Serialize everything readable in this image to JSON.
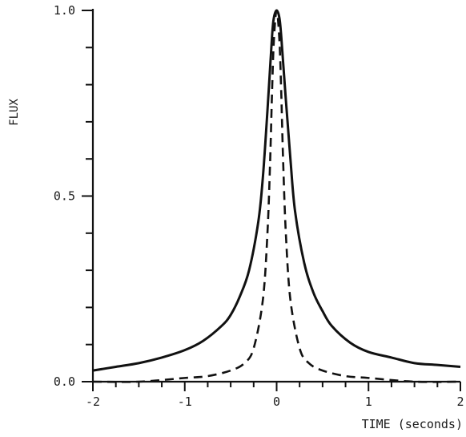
{
  "chart_data": {
    "type": "line",
    "title": "",
    "xlabel": "TIME (seconds)",
    "ylabel": "FLUX",
    "xlim": [
      -2,
      2
    ],
    "ylim": [
      0,
      1
    ],
    "xticks": [
      -2,
      -1,
      0,
      1,
      2
    ],
    "xtick_labels": [
      "-2",
      "-1",
      "0",
      "1",
      "2"
    ],
    "yticks": [
      0,
      0.5,
      1
    ],
    "ytick_labels": [
      "0.0",
      "0.5",
      "1.0"
    ],
    "grid": false,
    "legend": "none",
    "series": [
      {
        "style": "solid",
        "color": "#111111",
        "x": [
          -2.0,
          -1.75,
          -1.5,
          -1.25,
          -1.0,
          -0.8,
          -0.6,
          -0.5,
          -0.4,
          -0.3,
          -0.2,
          -0.15,
          -0.1,
          -0.05,
          -0.03,
          0.0,
          0.03,
          0.05,
          0.1,
          0.15,
          0.2,
          0.3,
          0.4,
          0.5,
          0.6,
          0.8,
          1.0,
          1.25,
          1.5,
          1.75,
          2.0
        ],
        "y": [
          0.03,
          0.04,
          0.05,
          0.065,
          0.085,
          0.11,
          0.15,
          0.18,
          0.23,
          0.3,
          0.43,
          0.55,
          0.73,
          0.93,
          0.98,
          1.0,
          0.98,
          0.93,
          0.76,
          0.6,
          0.46,
          0.32,
          0.24,
          0.19,
          0.15,
          0.105,
          0.08,
          0.065,
          0.05,
          0.045,
          0.04
        ]
      },
      {
        "style": "dashed",
        "color": "#111111",
        "x": [
          -2.0,
          -1.5,
          -1.0,
          -0.75,
          -0.5,
          -0.35,
          -0.25,
          -0.15,
          -0.1,
          -0.07,
          -0.05,
          -0.03,
          0.0,
          0.03,
          0.05,
          0.07,
          0.1,
          0.15,
          0.25,
          0.35,
          0.5,
          0.75,
          1.0,
          1.5,
          2.0
        ],
        "y": [
          0.0,
          0.0,
          0.01,
          0.015,
          0.03,
          0.05,
          0.09,
          0.22,
          0.4,
          0.6,
          0.78,
          0.92,
          1.0,
          0.92,
          0.78,
          0.6,
          0.4,
          0.22,
          0.09,
          0.05,
          0.03,
          0.015,
          0.01,
          0.0,
          0.0
        ]
      }
    ]
  }
}
